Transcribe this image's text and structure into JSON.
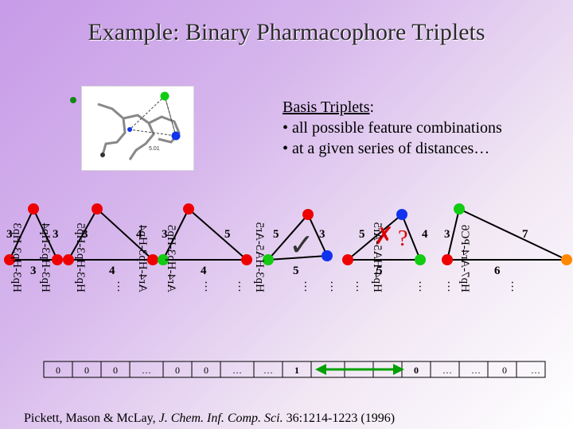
{
  "title": "Example: Binary Pharmacophore Triplets",
  "basis": {
    "heading": "Basis Triplets",
    "colon": ":",
    "line1": "• all possible feature combinations",
    "line2": "• at a given series of distances…"
  },
  "molecule": {
    "distance_label": "5.01"
  },
  "triangles": [
    {
      "left": "3",
      "right": "3",
      "bottom": "3"
    },
    {
      "left": "3",
      "right": "4",
      "bottom": "4"
    },
    {
      "left": "3",
      "right": "5",
      "bottom": "4"
    },
    {
      "left": "5",
      "right": "3",
      "bottom": "5"
    },
    {
      "left": "5",
      "right": "4",
      "bottom": "5"
    },
    {
      "left": "3",
      "right": "7",
      "bottom": "6"
    }
  ],
  "marks": {
    "check": "✓",
    "cross": "✗",
    "question": "?"
  },
  "column_labels": [
    "Hp3-Hp3-Hp3",
    "Hp3-Hp3-Hp4",
    "Hp3-Hp3-Hp5",
    "…",
    "Ar4-Hp3-Hp4",
    "Ar4-Hp3-Hp5",
    "…",
    "…",
    "Hp3-HA5-Ar5",
    "…",
    "…",
    "…",
    "Hp4-HA5-Ar5",
    "…",
    "…",
    "Hp7-Ar4-PC6",
    "…"
  ],
  "bits": [
    "0",
    "0",
    "0",
    "…",
    "0",
    "0",
    "…",
    "…",
    "1",
    "",
    "",
    "",
    "0",
    "…",
    "…",
    "0",
    "…"
  ],
  "citation": {
    "authors": "Pickett, Mason & McLay, ",
    "journal": "J. Chem. Inf. Comp. Sci.",
    "details": " 36:1214-1223 (1996)"
  },
  "colors": {
    "hydrophobe": "#ee0000",
    "acceptor": "#1133ee",
    "aromatic": "#11cc11",
    "charge": "#ff8800",
    "check": "#333333",
    "cross": "#dd0000",
    "arrow": "#00a000"
  }
}
